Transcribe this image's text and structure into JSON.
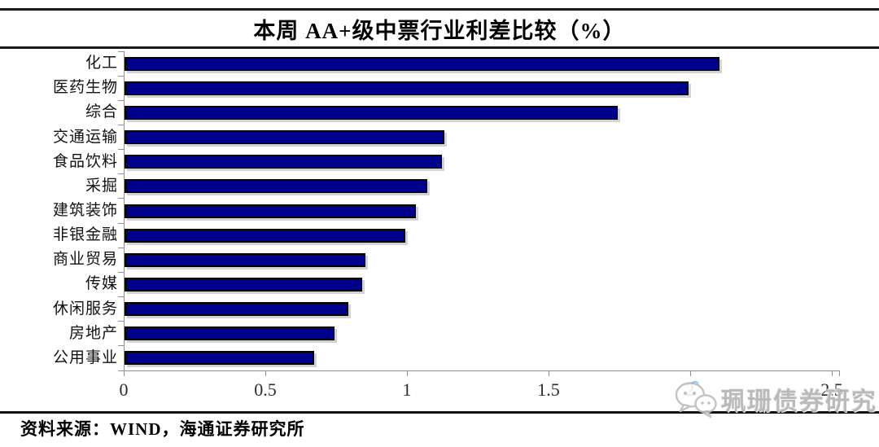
{
  "page": {
    "title": "本周 AA+级中票行业利差比较（%）",
    "source": "资料来源：WIND，海通证券研究所",
    "watermark": {
      "icon": "wechat-icon",
      "text": "珮珊债券研究"
    }
  },
  "colors": {
    "bar_fill": "#00008B",
    "bar_border": "#000000",
    "axis": "#8f8f8f",
    "title_rule": "#1a1a1a",
    "watermark_gray": "#b3b3b3"
  },
  "chart_data": {
    "type": "bar",
    "orientation": "horizontal",
    "title": "本周 AA+级中票行业利差比较（%）",
    "categories": [
      "化工",
      "医药生物",
      "综合",
      "交通运输",
      "食品饮料",
      "采掘",
      "建筑装饰",
      "非银金融",
      "商业贸易",
      "传媒",
      "休闲服务",
      "房地产",
      "公用事业"
    ],
    "values": [
      2.1,
      1.99,
      1.74,
      1.13,
      1.12,
      1.07,
      1.03,
      0.99,
      0.85,
      0.84,
      0.79,
      0.74,
      0.67
    ],
    "xlim": [
      0,
      2.5
    ],
    "xticks": [
      0,
      0.5,
      1,
      1.5,
      2,
      2.5
    ],
    "xtick_labels": [
      "0",
      "0.5",
      "1",
      "1.5",
      "2",
      "2.5"
    ],
    "ylabel": "",
    "xlabel": "",
    "grid": false,
    "legend_position": "none",
    "unit": "%"
  }
}
